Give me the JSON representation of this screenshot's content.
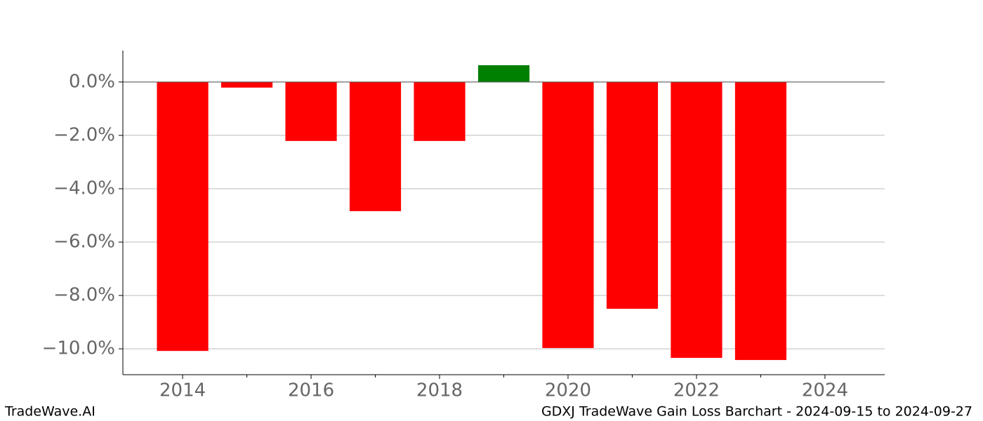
{
  "chart_data": {
    "type": "bar",
    "x": [
      2014,
      2015,
      2016,
      2017,
      2018,
      2019,
      2020,
      2021,
      2022,
      2023
    ],
    "values": [
      -10.08,
      -0.21,
      -2.21,
      -4.84,
      -2.21,
      0.63,
      -9.97,
      -8.5,
      -10.34,
      -10.42
    ],
    "colors": [
      "#ff0000",
      "#ff0000",
      "#ff0000",
      "#ff0000",
      "#ff0000",
      "#008000",
      "#ff0000",
      "#ff0000",
      "#ff0000",
      "#ff0000"
    ],
    "bar_width": 0.8,
    "xlim": [
      2013.07,
      2024.93
    ],
    "xticks": [
      2014,
      2016,
      2018,
      2020,
      2022,
      2024
    ],
    "xminor_ticks": [
      2015,
      2017,
      2019,
      2021,
      2023
    ],
    "ylim": [
      -10.97,
      1.18
    ],
    "yticks": [
      {
        "value": 0,
        "label": "0.0%"
      },
      {
        "value": -2,
        "label": "−2.0%"
      },
      {
        "value": -4,
        "label": "−4.0%"
      },
      {
        "value": -6,
        "label": "−6.0%"
      },
      {
        "value": -8,
        "label": "−8.0%"
      },
      {
        "value": -10,
        "label": "−10.0%"
      }
    ],
    "grid": true,
    "footer_left": "TradeWave.AI",
    "footer_right": "GDXJ TradeWave Gain Loss Barchart - 2024-09-15 to 2024-09-27"
  }
}
